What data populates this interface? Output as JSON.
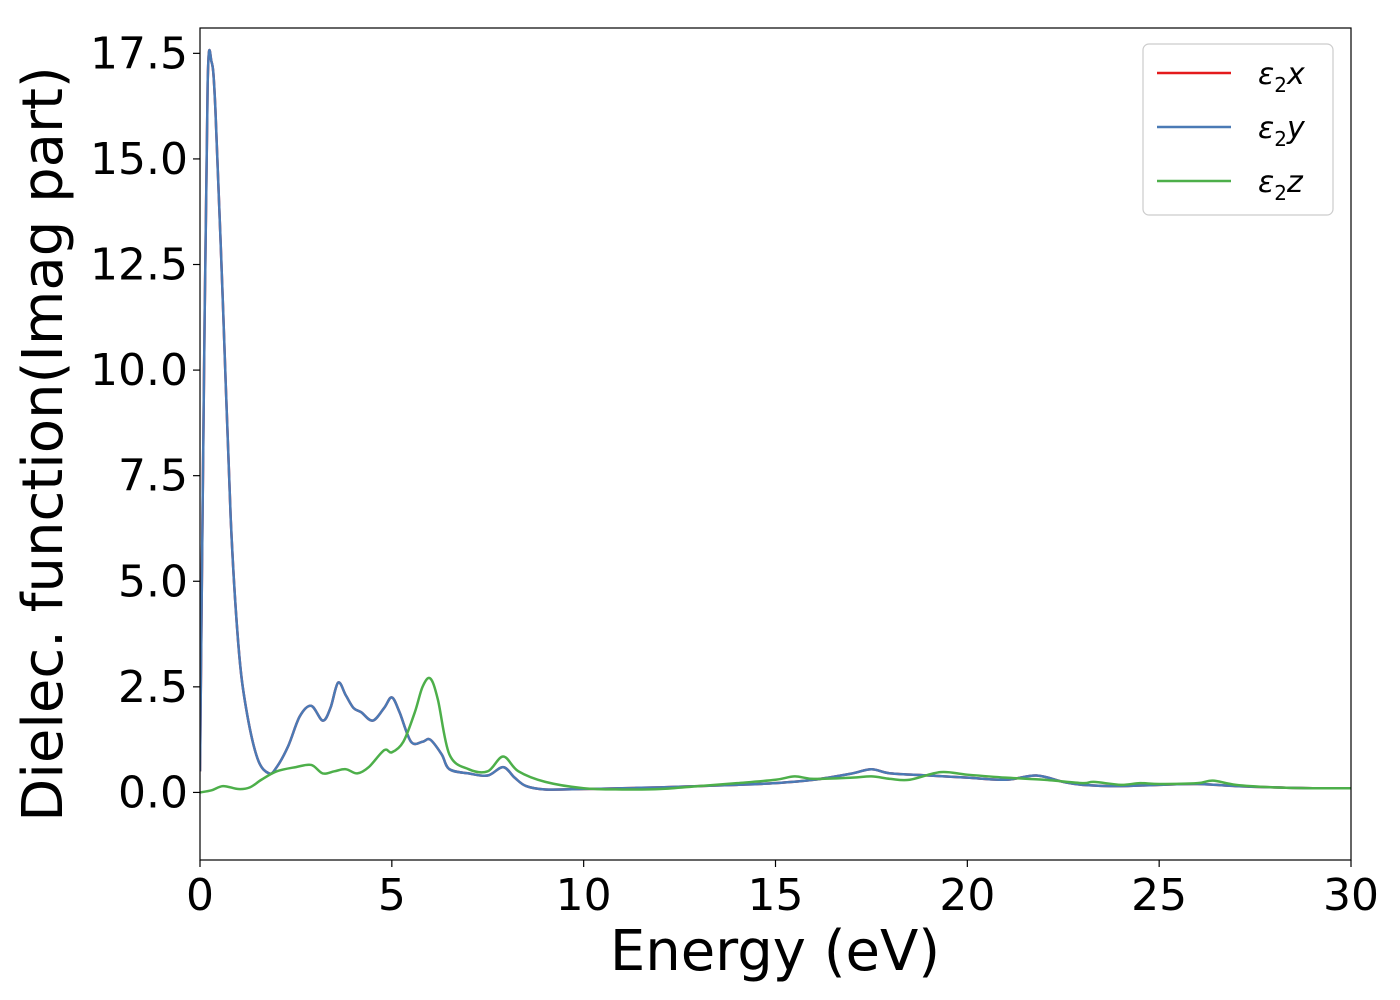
{
  "chart_data": {
    "type": "line",
    "xlabel": "Energy (eV)",
    "ylabel": "Dielec. function(Imag part)",
    "xlim": [
      0,
      30
    ],
    "ylim": [
      -1.6,
      18.1
    ],
    "xticks": [
      0,
      5,
      10,
      15,
      20,
      25,
      30
    ],
    "xtick_labels": [
      "0",
      "5",
      "10",
      "15",
      "20",
      "25",
      "30"
    ],
    "yticks": [
      0,
      2.5,
      5,
      7.5,
      10,
      12.5,
      15,
      17.5
    ],
    "ytick_labels": [
      "0.0",
      "2.5",
      "5.0",
      "7.5",
      "10.0",
      "12.5",
      "15.0",
      "17.5"
    ],
    "grid": false,
    "legend_position": "top-right",
    "series": [
      {
        "name_base": "ε",
        "name_sub": "2",
        "name_suffix": "x",
        "color": "#e41a1c",
        "x": [
          0,
          0.1,
          0.2,
          0.3,
          0.4,
          0.6,
          0.8,
          1.0,
          1.2,
          1.5,
          1.8,
          2.0,
          2.3,
          2.6,
          2.9,
          3.2,
          3.4,
          3.6,
          3.8,
          4.0,
          4.2,
          4.5,
          4.8,
          5.0,
          5.2,
          5.5,
          5.8,
          6.0,
          6.3,
          6.5,
          7.0,
          7.5,
          7.9,
          8.2,
          8.5,
          9.0,
          10,
          11,
          12,
          13,
          14,
          15,
          16,
          17,
          17.5,
          18,
          19,
          20,
          21,
          21.8,
          22.5,
          23,
          24,
          25,
          26,
          27,
          28,
          29,
          30
        ],
        "y": [
          0.5,
          9.5,
          16.8,
          17.3,
          16.2,
          11.5,
          6.5,
          3.5,
          2.0,
          0.8,
          0.45,
          0.6,
          1.1,
          1.8,
          2.05,
          1.7,
          2.0,
          2.6,
          2.3,
          2.0,
          1.9,
          1.7,
          2.0,
          2.25,
          1.9,
          1.2,
          1.2,
          1.25,
          0.9,
          0.55,
          0.45,
          0.4,
          0.6,
          0.35,
          0.15,
          0.07,
          0.08,
          0.1,
          0.12,
          0.15,
          0.18,
          0.22,
          0.3,
          0.45,
          0.55,
          0.45,
          0.4,
          0.35,
          0.3,
          0.4,
          0.25,
          0.18,
          0.15,
          0.18,
          0.2,
          0.15,
          0.12,
          0.1,
          0.1
        ]
      },
      {
        "name_base": "ε",
        "name_sub": "2",
        "name_suffix": "y",
        "color": "#4a7ab5",
        "x": [
          0,
          0.1,
          0.2,
          0.3,
          0.4,
          0.6,
          0.8,
          1.0,
          1.2,
          1.5,
          1.8,
          2.0,
          2.3,
          2.6,
          2.9,
          3.2,
          3.4,
          3.6,
          3.8,
          4.0,
          4.2,
          4.5,
          4.8,
          5.0,
          5.2,
          5.5,
          5.8,
          6.0,
          6.3,
          6.5,
          7.0,
          7.5,
          7.9,
          8.2,
          8.5,
          9.0,
          10,
          11,
          12,
          13,
          14,
          15,
          16,
          17,
          17.5,
          18,
          19,
          20,
          21,
          21.8,
          22.5,
          23,
          24,
          25,
          26,
          27,
          28,
          29,
          30
        ],
        "y": [
          0.5,
          9.5,
          16.8,
          17.3,
          16.2,
          11.5,
          6.5,
          3.5,
          2.0,
          0.8,
          0.45,
          0.6,
          1.1,
          1.8,
          2.05,
          1.7,
          2.0,
          2.6,
          2.3,
          2.0,
          1.9,
          1.7,
          2.0,
          2.25,
          1.9,
          1.2,
          1.2,
          1.25,
          0.9,
          0.55,
          0.45,
          0.4,
          0.6,
          0.35,
          0.15,
          0.07,
          0.08,
          0.1,
          0.12,
          0.15,
          0.18,
          0.22,
          0.3,
          0.45,
          0.55,
          0.45,
          0.4,
          0.35,
          0.3,
          0.4,
          0.25,
          0.18,
          0.15,
          0.18,
          0.2,
          0.15,
          0.12,
          0.1,
          0.1
        ]
      },
      {
        "name_base": "ε",
        "name_sub": "2",
        "name_suffix": "z",
        "color": "#4daf4a",
        "x": [
          0,
          0.3,
          0.6,
          1.0,
          1.3,
          1.6,
          2.0,
          2.5,
          2.9,
          3.2,
          3.5,
          3.8,
          4.1,
          4.4,
          4.8,
          5.0,
          5.3,
          5.6,
          5.8,
          6.0,
          6.2,
          6.5,
          7.0,
          7.5,
          7.9,
          8.3,
          9.0,
          10,
          11,
          12,
          13,
          14,
          15,
          15.5,
          16,
          17,
          17.5,
          18,
          18.5,
          19.3,
          20,
          21,
          22,
          23,
          23.3,
          24,
          24.5,
          25,
          26,
          26.4,
          27,
          28,
          29,
          30
        ],
        "y": [
          0.0,
          0.05,
          0.15,
          0.08,
          0.12,
          0.3,
          0.5,
          0.6,
          0.65,
          0.45,
          0.5,
          0.55,
          0.45,
          0.6,
          1.0,
          0.95,
          1.2,
          1.9,
          2.5,
          2.7,
          2.2,
          0.9,
          0.55,
          0.5,
          0.85,
          0.5,
          0.25,
          0.1,
          0.07,
          0.08,
          0.15,
          0.22,
          0.3,
          0.38,
          0.32,
          0.35,
          0.38,
          0.32,
          0.3,
          0.48,
          0.42,
          0.35,
          0.3,
          0.22,
          0.25,
          0.18,
          0.22,
          0.2,
          0.22,
          0.28,
          0.18,
          0.12,
          0.1,
          0.1
        ]
      }
    ]
  }
}
